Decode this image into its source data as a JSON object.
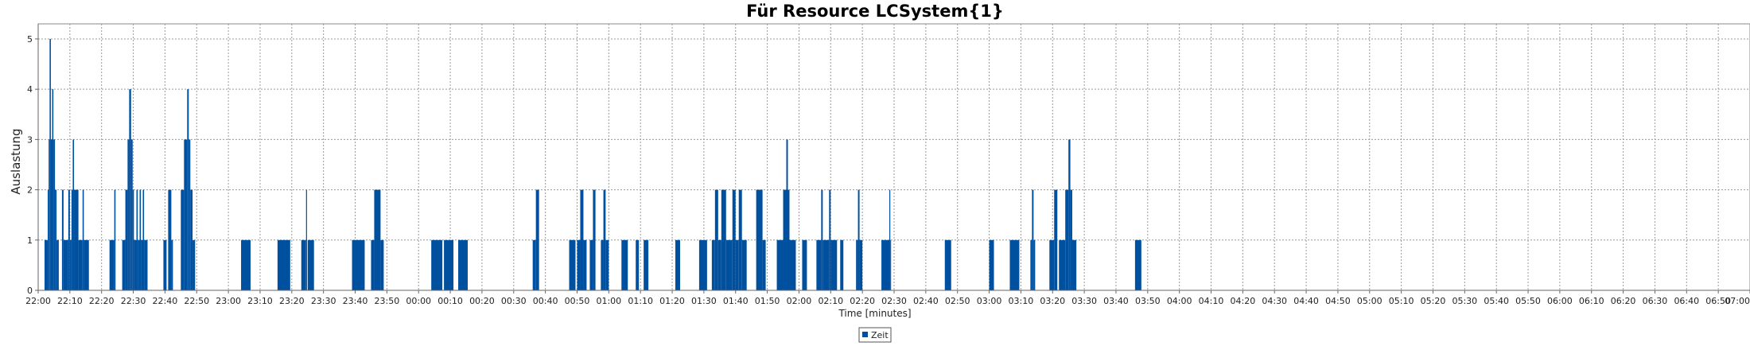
{
  "chart_data": {
    "type": "bar",
    "title": "Für Resource LCSystem{1}",
    "xlabel": "Time [minutes]",
    "ylabel": "Auslastung",
    "ylim": [
      0,
      5.3
    ],
    "yticks": [
      0,
      1,
      2,
      3,
      4,
      5
    ],
    "x_range_minutes": [
      0,
      540
    ],
    "grid": true,
    "bar_color": "#0050A0",
    "xtick_labels": [
      "22:00",
      "22:10",
      "22:20",
      "22:30",
      "22:40",
      "22:50",
      "23:00",
      "23:10",
      "23:20",
      "23:30",
      "23:40",
      "23:50",
      "00:00",
      "00:10",
      "00:20",
      "00:30",
      "00:40",
      "00:50",
      "01:00",
      "01:10",
      "01:20",
      "01:30",
      "01:40",
      "01:50",
      "02:00",
      "02:10",
      "02:20",
      "02:30",
      "02:40",
      "02:50",
      "03:00",
      "03:10",
      "03:20",
      "03:30",
      "03:40",
      "03:50",
      "04:00",
      "04:10",
      "04:20",
      "04:30",
      "04:40",
      "04:50",
      "05:00",
      "05:10",
      "05:20",
      "05:30",
      "05:40",
      "05:50",
      "06:00",
      "06:10",
      "06:20",
      "06:30",
      "06:40",
      "06:50",
      "07:00"
    ],
    "legend": {
      "position": "bottom-center",
      "entries": [
        {
          "label": "Zeit",
          "color": "#0050A0"
        }
      ]
    },
    "series": [
      {
        "name": "Zeit",
        "bars": [
          {
            "start": 2.0,
            "end": 3.0,
            "value": 1
          },
          {
            "start": 3.0,
            "end": 3.3,
            "value": 2
          },
          {
            "start": 3.3,
            "end": 3.6,
            "value": 3
          },
          {
            "start": 3.6,
            "end": 4.0,
            "value": 5
          },
          {
            "start": 4.0,
            "end": 4.4,
            "value": 3
          },
          {
            "start": 4.4,
            "end": 4.8,
            "value": 4
          },
          {
            "start": 4.8,
            "end": 5.3,
            "value": 3
          },
          {
            "start": 5.3,
            "end": 5.8,
            "value": 2
          },
          {
            "start": 5.8,
            "end": 6.5,
            "value": 1
          },
          {
            "start": 7.5,
            "end": 8.0,
            "value": 2
          },
          {
            "start": 8.0,
            "end": 9.5,
            "value": 1
          },
          {
            "start": 9.5,
            "end": 10.0,
            "value": 2
          },
          {
            "start": 10.0,
            "end": 10.5,
            "value": 1
          },
          {
            "start": 10.5,
            "end": 10.9,
            "value": 2
          },
          {
            "start": 10.9,
            "end": 11.3,
            "value": 3
          },
          {
            "start": 11.3,
            "end": 12.7,
            "value": 2
          },
          {
            "start": 12.7,
            "end": 14.0,
            "value": 1
          },
          {
            "start": 14.0,
            "end": 14.4,
            "value": 2
          },
          {
            "start": 14.4,
            "end": 16.0,
            "value": 1
          },
          {
            "start": 22.5,
            "end": 24.0,
            "value": 1
          },
          {
            "start": 24.0,
            "end": 24.4,
            "value": 2
          },
          {
            "start": 26.5,
            "end": 27.5,
            "value": 1
          },
          {
            "start": 27.5,
            "end": 28.2,
            "value": 2
          },
          {
            "start": 28.2,
            "end": 28.7,
            "value": 3
          },
          {
            "start": 28.7,
            "end": 29.3,
            "value": 4
          },
          {
            "start": 29.3,
            "end": 29.8,
            "value": 3
          },
          {
            "start": 29.8,
            "end": 30.2,
            "value": 2
          },
          {
            "start": 30.2,
            "end": 31.0,
            "value": 1
          },
          {
            "start": 31.0,
            "end": 31.4,
            "value": 2
          },
          {
            "start": 31.4,
            "end": 32.0,
            "value": 1
          },
          {
            "start": 32.0,
            "end": 32.4,
            "value": 2
          },
          {
            "start": 32.4,
            "end": 33.0,
            "value": 1
          },
          {
            "start": 33.0,
            "end": 33.4,
            "value": 2
          },
          {
            "start": 33.4,
            "end": 34.5,
            "value": 1
          },
          {
            "start": 39.5,
            "end": 40.5,
            "value": 1
          },
          {
            "start": 41.0,
            "end": 42.0,
            "value": 2
          },
          {
            "start": 42.0,
            "end": 42.5,
            "value": 1
          },
          {
            "start": 45.0,
            "end": 46.0,
            "value": 2
          },
          {
            "start": 46.0,
            "end": 47.0,
            "value": 3
          },
          {
            "start": 47.0,
            "end": 47.5,
            "value": 4
          },
          {
            "start": 47.5,
            "end": 48.0,
            "value": 3
          },
          {
            "start": 48.0,
            "end": 48.7,
            "value": 2
          },
          {
            "start": 48.7,
            "end": 49.5,
            "value": 1
          },
          {
            "start": 64.0,
            "end": 67.0,
            "value": 1
          },
          {
            "start": 75.5,
            "end": 79.5,
            "value": 1
          },
          {
            "start": 83.0,
            "end": 84.5,
            "value": 1
          },
          {
            "start": 84.5,
            "end": 84.8,
            "value": 2
          },
          {
            "start": 85.0,
            "end": 87.0,
            "value": 1
          },
          {
            "start": 99.0,
            "end": 103.0,
            "value": 1
          },
          {
            "start": 105.0,
            "end": 106.0,
            "value": 1
          },
          {
            "start": 106.0,
            "end": 108.0,
            "value": 2
          },
          {
            "start": 108.0,
            "end": 109.0,
            "value": 1
          },
          {
            "start": 124.0,
            "end": 127.5,
            "value": 1
          },
          {
            "start": 128.0,
            "end": 131.0,
            "value": 1
          },
          {
            "start": 132.5,
            "end": 135.5,
            "value": 1
          },
          {
            "start": 156.0,
            "end": 157.0,
            "value": 1
          },
          {
            "start": 157.0,
            "end": 158.0,
            "value": 2
          },
          {
            "start": 167.5,
            "end": 169.5,
            "value": 1
          },
          {
            "start": 170.0,
            "end": 171.0,
            "value": 1
          },
          {
            "start": 171.0,
            "end": 172.0,
            "value": 2
          },
          {
            "start": 172.0,
            "end": 173.0,
            "value": 1
          },
          {
            "start": 174.0,
            "end": 175.0,
            "value": 1
          },
          {
            "start": 175.0,
            "end": 175.8,
            "value": 2
          },
          {
            "start": 177.5,
            "end": 178.3,
            "value": 1
          },
          {
            "start": 178.3,
            "end": 179.0,
            "value": 2
          },
          {
            "start": 179.0,
            "end": 180.0,
            "value": 1
          },
          {
            "start": 184.0,
            "end": 186.0,
            "value": 1
          },
          {
            "start": 188.5,
            "end": 189.5,
            "value": 1
          },
          {
            "start": 191.0,
            "end": 192.5,
            "value": 1
          },
          {
            "start": 201.0,
            "end": 202.5,
            "value": 1
          },
          {
            "start": 208.5,
            "end": 211.0,
            "value": 1
          },
          {
            "start": 212.5,
            "end": 213.5,
            "value": 1
          },
          {
            "start": 213.5,
            "end": 214.5,
            "value": 2
          },
          {
            "start": 214.5,
            "end": 215.5,
            "value": 1
          },
          {
            "start": 215.5,
            "end": 217.0,
            "value": 2
          },
          {
            "start": 217.0,
            "end": 219.0,
            "value": 1
          },
          {
            "start": 219.0,
            "end": 220.0,
            "value": 2
          },
          {
            "start": 220.0,
            "end": 221.0,
            "value": 1
          },
          {
            "start": 221.0,
            "end": 222.0,
            "value": 2
          },
          {
            "start": 222.0,
            "end": 223.5,
            "value": 1
          },
          {
            "start": 226.5,
            "end": 228.5,
            "value": 2
          },
          {
            "start": 228.5,
            "end": 229.5,
            "value": 1
          },
          {
            "start": 233.0,
            "end": 235.0,
            "value": 1
          },
          {
            "start": 235.0,
            "end": 236.0,
            "value": 2
          },
          {
            "start": 236.0,
            "end": 236.5,
            "value": 3
          },
          {
            "start": 236.5,
            "end": 237.0,
            "value": 2
          },
          {
            "start": 237.0,
            "end": 239.0,
            "value": 1
          },
          {
            "start": 241.0,
            "end": 242.5,
            "value": 1
          },
          {
            "start": 245.5,
            "end": 247.0,
            "value": 1
          },
          {
            "start": 247.0,
            "end": 247.5,
            "value": 2
          },
          {
            "start": 247.5,
            "end": 249.5,
            "value": 1
          },
          {
            "start": 249.5,
            "end": 250.0,
            "value": 2
          },
          {
            "start": 250.0,
            "end": 252.0,
            "value": 1
          },
          {
            "start": 253.0,
            "end": 254.0,
            "value": 1
          },
          {
            "start": 258.0,
            "end": 258.6,
            "value": 1
          },
          {
            "start": 258.6,
            "end": 259.1,
            "value": 2
          },
          {
            "start": 259.1,
            "end": 260.0,
            "value": 1
          },
          {
            "start": 266.0,
            "end": 268.5,
            "value": 1
          },
          {
            "start": 268.5,
            "end": 268.8,
            "value": 2
          },
          {
            "start": 268.8,
            "end": 269.0,
            "value": 1
          },
          {
            "start": 286.0,
            "end": 288.0,
            "value": 1
          },
          {
            "start": 300.0,
            "end": 301.5,
            "value": 1
          },
          {
            "start": 306.5,
            "end": 309.5,
            "value": 1
          },
          {
            "start": 313.0,
            "end": 313.5,
            "value": 1
          },
          {
            "start": 313.5,
            "end": 314.0,
            "value": 2
          },
          {
            "start": 314.0,
            "end": 314.5,
            "value": 1
          },
          {
            "start": 319.0,
            "end": 320.5,
            "value": 1
          },
          {
            "start": 320.5,
            "end": 321.5,
            "value": 2
          },
          {
            "start": 322.0,
            "end": 324.0,
            "value": 1
          },
          {
            "start": 324.0,
            "end": 325.0,
            "value": 2
          },
          {
            "start": 325.0,
            "end": 325.6,
            "value": 3
          },
          {
            "start": 325.6,
            "end": 326.2,
            "value": 2
          },
          {
            "start": 326.2,
            "end": 327.5,
            "value": 1
          },
          {
            "start": 346.0,
            "end": 348.0,
            "value": 1
          }
        ]
      }
    ]
  }
}
